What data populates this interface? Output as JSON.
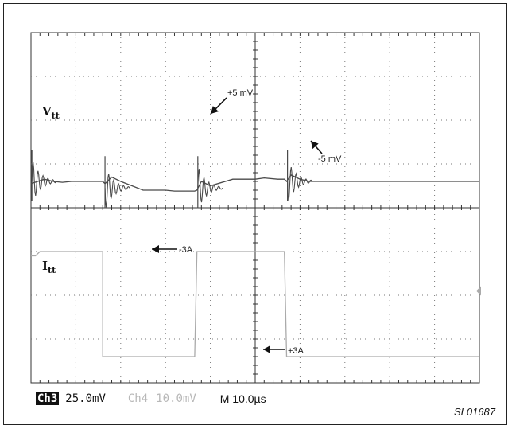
{
  "chart_data": {
    "type": "line",
    "title": "",
    "divisions": {
      "x": 10,
      "y": 8
    },
    "series": [
      {
        "name": "Vtt",
        "trace_color": "#4a4a4a",
        "scale": "25.0mV",
        "points_div": [
          [
            0,
            4.55
          ],
          [
            0.15,
            4.6
          ],
          [
            0.3,
            4.65
          ],
          [
            0.5,
            4.6
          ],
          [
            0.7,
            4.58
          ],
          [
            0.9,
            4.6
          ],
          [
            1.1,
            4.6
          ],
          [
            1.3,
            4.6
          ],
          [
            1.55,
            4.6
          ],
          [
            1.6,
            4.6
          ],
          [
            1.65,
            4.55
          ],
          [
            1.8,
            4.7
          ],
          [
            2,
            4.6
          ],
          [
            2.5,
            4.4
          ],
          [
            3,
            4.4
          ],
          [
            3.2,
            4.38
          ],
          [
            3.5,
            4.38
          ],
          [
            3.65,
            4.38
          ],
          [
            3.7,
            4.4
          ],
          [
            3.8,
            4.6
          ],
          [
            4,
            4.5
          ],
          [
            4.5,
            4.65
          ],
          [
            5,
            4.65
          ],
          [
            5.2,
            4.68
          ],
          [
            5.5,
            4.65
          ],
          [
            5.65,
            4.65
          ],
          [
            5.7,
            4.6
          ],
          [
            5.8,
            4.75
          ],
          [
            6,
            4.65
          ],
          [
            6.2,
            4.6
          ],
          [
            6.5,
            4.6
          ],
          [
            7,
            4.6
          ],
          [
            7.5,
            4.6
          ],
          [
            8,
            4.6
          ],
          [
            8.5,
            4.6
          ],
          [
            9,
            4.6
          ],
          [
            9.5,
            4.6
          ],
          [
            10,
            4.6
          ]
        ],
        "annotations": [
          {
            "text": "+5 mV"
          },
          {
            "text": "-5 mV"
          }
        ]
      },
      {
        "name": "Itt",
        "trace_color": "#aaaaaa",
        "scale": "10.0mV",
        "points_div": [
          [
            0,
            2.9
          ],
          [
            0.1,
            2.9
          ],
          [
            0.2,
            3.0
          ],
          [
            1.6,
            3.0
          ],
          [
            1.6,
            0.6
          ],
          [
            2,
            0.6
          ],
          [
            2.5,
            0.6
          ],
          [
            3,
            0.6
          ],
          [
            3.5,
            0.6
          ],
          [
            3.65,
            0.6
          ],
          [
            3.7,
            3.0
          ],
          [
            4,
            3.0
          ],
          [
            4.5,
            3.0
          ],
          [
            5,
            3.0
          ],
          [
            5.5,
            3.0
          ],
          [
            5.65,
            3.0
          ],
          [
            5.7,
            0.6
          ],
          [
            6,
            0.6
          ],
          [
            6.5,
            0.6
          ],
          [
            7,
            0.6
          ],
          [
            7.5,
            0.6
          ],
          [
            8,
            0.6
          ],
          [
            8.5,
            0.6
          ],
          [
            9,
            0.6
          ],
          [
            9.5,
            0.6
          ],
          [
            10,
            0.6
          ]
        ],
        "annotations": [
          {
            "text": "-3A"
          },
          {
            "text": "+3A"
          }
        ]
      }
    ]
  },
  "labels": {
    "vtt_main": "V",
    "vtt_sub": "tt",
    "itt_main": "I",
    "itt_sub": "tt"
  },
  "status": {
    "ch3_badge": "Ch3",
    "ch3_scale": "25.0mV",
    "ch4_name": "Ch4",
    "ch4_scale": "10.0mV",
    "timebase": "M 10.0µs"
  },
  "figure_id": "SL01687"
}
